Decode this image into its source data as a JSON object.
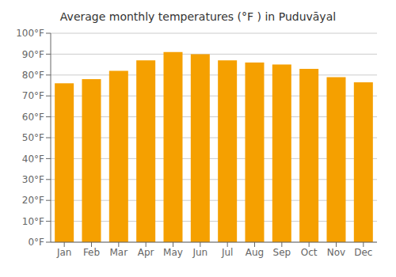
{
  "chart_data": {
    "type": "bar",
    "title": "Average monthly temperatures (°F ) in Puduvāyal",
    "categories": [
      "Jan",
      "Feb",
      "Mar",
      "Apr",
      "May",
      "Jun",
      "Jul",
      "Aug",
      "Sep",
      "Oct",
      "Nov",
      "Dec"
    ],
    "values": [
      76,
      78,
      82,
      87,
      91,
      90,
      87,
      86,
      85,
      83,
      79,
      76.5
    ],
    "color": "#F5A000",
    "ylim": [
      0,
      100
    ],
    "yticks": [
      {
        "value": 0,
        "label": "0°F"
      },
      {
        "value": 10,
        "label": "10°F"
      },
      {
        "value": 20,
        "label": "20°F"
      },
      {
        "value": 30,
        "label": "30°F"
      },
      {
        "value": 40,
        "label": "40°F"
      },
      {
        "value": 50,
        "label": "50°F"
      },
      {
        "value": 60,
        "label": "60°F"
      },
      {
        "value": 70,
        "label": "70°F"
      },
      {
        "value": 80,
        "label": "80°F"
      },
      {
        "value": 90,
        "label": "90°F"
      },
      {
        "value": 100,
        "label": "100°F"
      }
    ],
    "grid": true
  }
}
